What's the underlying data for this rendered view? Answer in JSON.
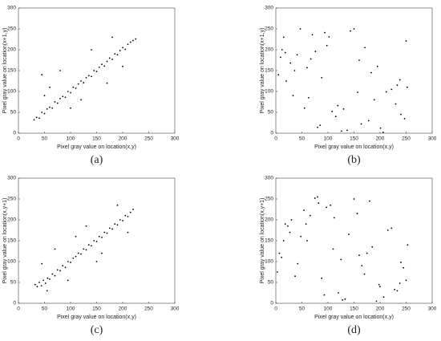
{
  "chart_data": [
    {
      "type": "scatter",
      "label": "(a)",
      "xlabel": "Pixel gray value on location(x,y)",
      "ylabel": "Pixel gray value on location(x+1,y)",
      "color": "#000000",
      "xlim": [
        0,
        300
      ],
      "ylim": [
        0,
        300
      ],
      "xticks": [
        0,
        50,
        100,
        150,
        200,
        250,
        300
      ],
      "yticks": [
        0,
        50,
        100,
        150,
        200,
        250,
        300
      ],
      "x": [
        30,
        35,
        40,
        45,
        50,
        55,
        60,
        65,
        70,
        75,
        80,
        85,
        90,
        95,
        100,
        105,
        110,
        115,
        120,
        125,
        130,
        135,
        140,
        145,
        150,
        155,
        160,
        165,
        170,
        175,
        180,
        185,
        190,
        195,
        200,
        205,
        210,
        215,
        220,
        225,
        60,
        80,
        100,
        140,
        170,
        50,
        120,
        180,
        45,
        200
      ],
      "y": [
        32,
        38,
        36,
        50,
        47,
        58,
        62,
        60,
        75,
        72,
        83,
        88,
        86,
        100,
        97,
        110,
        108,
        118,
        125,
        121,
        133,
        138,
        136,
        150,
        148,
        158,
        165,
        161,
        172,
        180,
        177,
        190,
        188,
        198,
        205,
        201,
        213,
        218,
        222,
        226,
        110,
        150,
        60,
        200,
        120,
        90,
        80,
        230,
        140,
        160
      ]
    },
    {
      "type": "scatter",
      "label": "(b)",
      "xlabel": "Pixel gray value on location(x,y)",
      "ylabel": "Pixel gray value on location(x+1,y)",
      "color": "#000000",
      "xlim": [
        0,
        300
      ],
      "ylim": [
        0,
        300
      ],
      "xticks": [
        0,
        50,
        100,
        150,
        200,
        250,
        300
      ],
      "yticks": [
        0,
        50,
        100,
        150,
        200,
        250,
        300
      ],
      "x": [
        12,
        240,
        88,
        150,
        33,
        201,
        67,
        119,
        250,
        5,
        178,
        94,
        222,
        41,
        137,
        60,
        189,
        15,
        108,
        233,
        76,
        164,
        28,
        212,
        143,
        55,
        98,
        247,
        183,
        20,
        126,
        70,
        230,
        9,
        157,
        85,
        195,
        47,
        115,
        238,
        63,
        171,
        36,
        206,
        102,
        252,
        130,
        18,
        80,
        160
      ],
      "y": [
        200,
        45,
        133,
        250,
        90,
        12,
        178,
        66,
        221,
        140,
        30,
        241,
        105,
        188,
        7,
        157,
        80,
        230,
        52,
        115,
        196,
        22,
        168,
        99,
        245,
        60,
        210,
        35,
        145,
        125,
        5,
        236,
        70,
        182,
        98,
        19,
        160,
        250,
        40,
        128,
        85,
        205,
        150,
        2,
        231,
        110,
        58,
        193,
        14,
        175
      ]
    },
    {
      "type": "scatter",
      "label": "(c)",
      "xlabel": "Pixel gray value on location(x,y)",
      "ylabel": "Pixel gray value on location(x,y+1)",
      "color": "#000000",
      "xlim": [
        0,
        300
      ],
      "ylim": [
        0,
        300
      ],
      "xticks": [
        0,
        50,
        100,
        150,
        200,
        250,
        300
      ],
      "yticks": [
        0,
        50,
        100,
        150,
        200,
        250,
        300
      ],
      "x": [
        32,
        36,
        40,
        44,
        48,
        52,
        56,
        60,
        65,
        70,
        75,
        80,
        85,
        90,
        95,
        100,
        105,
        110,
        115,
        120,
        125,
        130,
        135,
        140,
        145,
        150,
        155,
        160,
        165,
        170,
        175,
        180,
        185,
        190,
        195,
        200,
        205,
        210,
        215,
        220,
        45,
        70,
        95,
        130,
        160,
        190,
        55,
        110,
        150,
        210
      ],
      "y": [
        45,
        40,
        50,
        42,
        55,
        48,
        60,
        58,
        70,
        66,
        80,
        78,
        90,
        86,
        100,
        98,
        108,
        112,
        120,
        118,
        130,
        128,
        140,
        138,
        150,
        148,
        160,
        158,
        170,
        168,
        180,
        178,
        190,
        188,
        200,
        198,
        210,
        208,
        218,
        225,
        95,
        130,
        55,
        185,
        120,
        235,
        30,
        160,
        100,
        170
      ]
    },
    {
      "type": "scatter",
      "label": "(d)",
      "xlabel": "Pixel gray value on location(x,y)",
      "ylabel": "Pixel gray value on location(x,y+1)",
      "color": "#000000",
      "xlim": [
        0,
        300
      ],
      "ylim": [
        0,
        300
      ],
      "xticks": [
        0,
        50,
        100,
        150,
        200,
        250,
        300
      ],
      "yticks": [
        0,
        50,
        100,
        150,
        200,
        250,
        300
      ],
      "x": [
        200,
        18,
        97,
        245,
        60,
        133,
        7,
        180,
        88,
        215,
        42,
        156,
        120,
        253,
        30,
        170,
        75,
        228,
        11,
        140,
        193,
        54,
        110,
        238,
        23,
        165,
        82,
        207,
        48,
        125,
        250,
        66,
        185,
        3,
        150,
        93,
        222,
        37,
        175,
        105,
        240,
        15,
        128,
        58,
        198,
        80,
        160,
        27,
        233,
        112
      ],
      "y": [
        40,
        190,
        230,
        85,
        150,
        10,
        120,
        245,
        60,
        175,
        95,
        215,
        25,
        140,
        200,
        70,
        252,
        33,
        110,
        165,
        5,
        223,
        130,
        48,
        185,
        90,
        240,
        15,
        160,
        105,
        55,
        210,
        135,
        75,
        250,
        20,
        180,
        65,
        120,
        235,
        98,
        150,
        8,
        190,
        45,
        255,
        115,
        170,
        30,
        205
      ]
    }
  ]
}
